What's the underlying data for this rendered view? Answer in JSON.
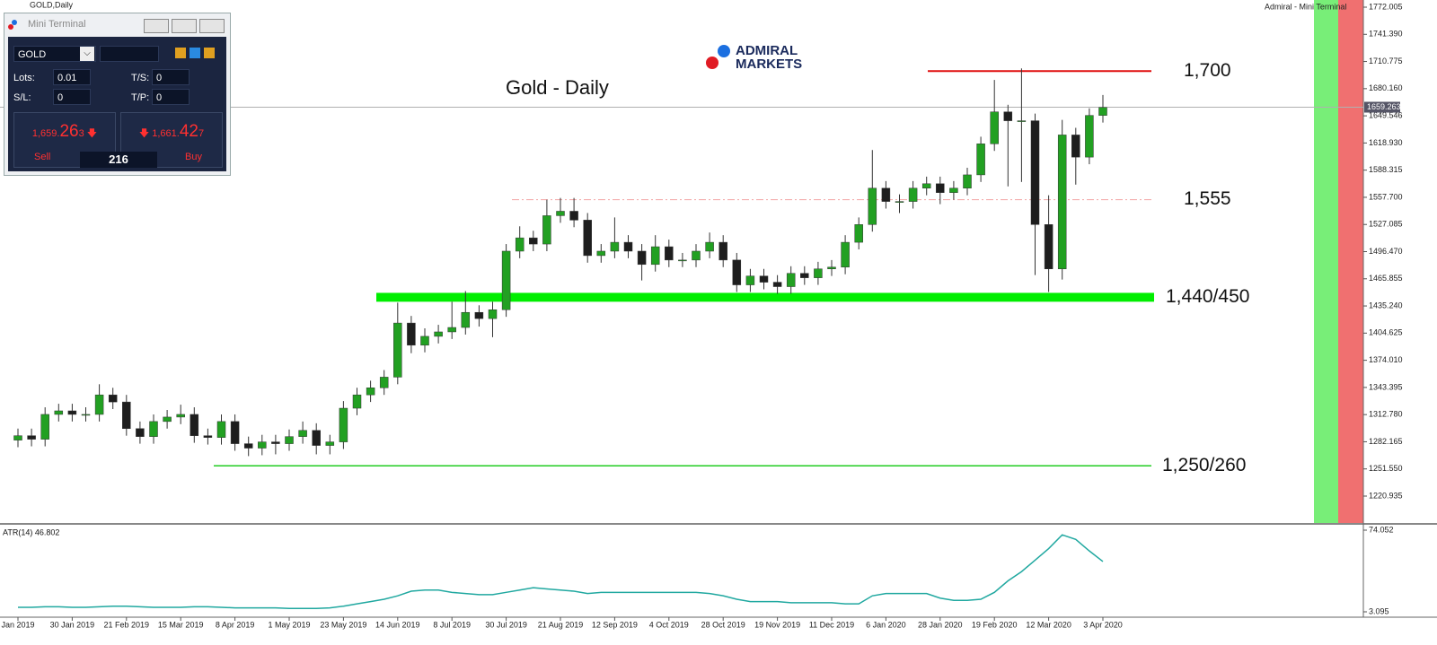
{
  "window": {
    "symbol_title": "GOLD,Daily",
    "app_title": "Admiral - Mini Terminal"
  },
  "terminal": {
    "title": "Mini Terminal",
    "symbol": "GOLD",
    "lots_label": "Lots:",
    "lots": 0.01,
    "ts_label": "T/S:",
    "ts": 0,
    "sl_label": "S/L:",
    "sl": 0,
    "tp_label": "T/P:",
    "tp": 0,
    "sell_price_parts": [
      "1,659.",
      "26",
      "3"
    ],
    "buy_price_parts": [
      "1,661.",
      "42",
      "7"
    ],
    "sell": "Sell",
    "buy": "Buy",
    "spread": 216
  },
  "logo": {
    "line1": "ADMIRAL",
    "line2": "MARKETS"
  },
  "chart_data": [
    {
      "type": "candlestick",
      "title": "Gold - Daily",
      "categories": [
        "Jan 2019",
        null,
        null,
        null,
        "30 Jan 2019",
        null,
        null,
        null,
        "21 Feb 2019",
        null,
        null,
        null,
        "15 Mar 2019",
        null,
        null,
        null,
        "8 Apr 2019",
        null,
        null,
        null,
        "1 May 2019",
        null,
        null,
        null,
        "23 May 2019",
        null,
        null,
        null,
        "14 Jun 2019",
        null,
        null,
        null,
        "8 Jul 2019",
        null,
        null,
        null,
        "30 Jul 2019",
        null,
        null,
        null,
        "21 Aug 2019",
        null,
        null,
        null,
        "12 Sep 2019",
        null,
        null,
        null,
        "4 Oct 2019",
        null,
        null,
        null,
        "28 Oct 2019",
        null,
        null,
        null,
        "19 Nov 2019",
        null,
        null,
        null,
        "11 Dec 2019",
        null,
        null,
        null,
        "6 Jan 2020",
        null,
        null,
        null,
        "28 Jan 2020",
        null,
        null,
        null,
        "19 Feb 2020",
        null,
        null,
        null,
        "12 Mar 2020",
        null,
        null,
        null,
        "3 Apr 2020"
      ],
      "open": [
        1284,
        1289,
        1285,
        1313,
        1317,
        1313,
        1313,
        1335,
        1327,
        1297,
        1288,
        1305,
        1310,
        1313,
        1289,
        1287,
        1305,
        1280,
        1275,
        1282,
        1280,
        1288,
        1295,
        1278,
        1282,
        1320,
        1335,
        1343,
        1355,
        1416,
        1391,
        1401,
        1406,
        1411,
        1428,
        1421,
        1431,
        1497,
        1512,
        1505,
        1537,
        1542,
        1532,
        1492,
        1497,
        1507,
        1497,
        1482,
        1502,
        1487,
        1487,
        1497,
        1507,
        1487,
        1459,
        1469,
        1462,
        1457,
        1472,
        1467,
        1477,
        1479,
        1507,
        1527,
        1568,
        1553,
        1553,
        1568,
        1573,
        1563,
        1568,
        1583,
        1618,
        1654,
        1644,
        1644,
        1527,
        1477,
        1628,
        1603,
        1650
      ],
      "high": [
        1297,
        1297,
        1321,
        1325,
        1325,
        1321,
        1347,
        1343,
        1335,
        1305,
        1313,
        1318,
        1324,
        1321,
        1297,
        1313,
        1313,
        1288,
        1290,
        1290,
        1296,
        1305,
        1303,
        1290,
        1328,
        1343,
        1351,
        1363,
        1439,
        1424,
        1410,
        1414,
        1440,
        1452,
        1436,
        1440,
        1505,
        1525,
        1520,
        1555,
        1557,
        1557,
        1540,
        1505,
        1535,
        1515,
        1505,
        1515,
        1510,
        1495,
        1505,
        1518,
        1515,
        1495,
        1477,
        1477,
        1470,
        1480,
        1480,
        1485,
        1487,
        1515,
        1535,
        1611,
        1576,
        1561,
        1576,
        1581,
        1581,
        1576,
        1591,
        1626,
        1690,
        1662,
        1703,
        1652,
        1560,
        1645,
        1636,
        1658,
        1673
      ],
      "low": [
        1276,
        1277,
        1277,
        1305,
        1305,
        1305,
        1305,
        1319,
        1289,
        1280,
        1280,
        1297,
        1302,
        1281,
        1279,
        1279,
        1272,
        1266,
        1267,
        1268,
        1272,
        1280,
        1268,
        1268,
        1274,
        1312,
        1327,
        1335,
        1347,
        1382,
        1383,
        1393,
        1398,
        1403,
        1412,
        1400,
        1423,
        1489,
        1497,
        1497,
        1529,
        1524,
        1484,
        1484,
        1489,
        1489,
        1464,
        1474,
        1479,
        1479,
        1479,
        1489,
        1479,
        1451,
        1451,
        1454,
        1449,
        1449,
        1459,
        1459,
        1469,
        1471,
        1499,
        1519,
        1545,
        1540,
        1545,
        1560,
        1550,
        1555,
        1560,
        1575,
        1610,
        1570,
        1575,
        1470,
        1451,
        1465,
        1572,
        1595,
        1642
      ],
      "close": [
        1289,
        1285,
        1313,
        1317,
        1313,
        1313,
        1335,
        1327,
        1297,
        1288,
        1305,
        1310,
        1313,
        1289,
        1287,
        1305,
        1280,
        1275,
        1282,
        1280,
        1288,
        1295,
        1278,
        1282,
        1320,
        1335,
        1343,
        1355,
        1416,
        1391,
        1401,
        1406,
        1411,
        1428,
        1421,
        1431,
        1497,
        1512,
        1505,
        1537,
        1542,
        1532,
        1492,
        1497,
        1507,
        1497,
        1482,
        1502,
        1487,
        1487,
        1497,
        1507,
        1487,
        1459,
        1469,
        1462,
        1457,
        1472,
        1467,
        1477,
        1479,
        1507,
        1527,
        1568,
        1553,
        1553,
        1568,
        1573,
        1563,
        1568,
        1583,
        1618,
        1654,
        1644,
        1644,
        1527,
        1477,
        1628,
        1603,
        1650,
        1659
      ],
      "up_color": "#22a022",
      "down_color": "#1e1e1e",
      "ylim": [
        1190.6,
        1772.005
      ],
      "yticks": [
        1772.005,
        {
          "value": 1741.39,
          "label": "1741.390"
        },
        1710.775,
        {
          "value": 1680.16,
          "label": "1680.160"
        },
        1649.546,
        {
          "value": 1618.93,
          "label": "1618.930"
        },
        1588.315,
        {
          "value": 1557.7,
          "label": "1557.700"
        },
        1527.085,
        {
          "value": 1496.47,
          "label": "1496.470"
        },
        1465.855,
        {
          "value": 1435.24,
          "label": "1435.240"
        },
        1404.625,
        {
          "value": 1374.01,
          "label": "1374.010"
        },
        1343.395,
        {
          "value": 1312.78,
          "label": "1312.780"
        },
        1282.165,
        {
          "value": 1251.55,
          "label": "1251.550"
        },
        1220.935
      ],
      "current_price": 1659.263,
      "levels": [
        {
          "label": "1,700",
          "value": 1700,
          "color": "#e01010",
          "style": "line"
        },
        {
          "label": "1,555",
          "value": 1555,
          "color": "#f3a3a3",
          "style": "dashdot"
        },
        {
          "label": "1,440/450",
          "low": 1440,
          "high": 1450,
          "color": "#00ee00",
          "style": "band"
        },
        {
          "label": "1,250/260",
          "low": 1250,
          "high": 1260,
          "color": "#22cc22",
          "style": "line"
        }
      ]
    },
    {
      "type": "line",
      "title": "ATR(14) 46.802",
      "color": "#20a8a0",
      "values": [
        7,
        7,
        7.5,
        7.5,
        7,
        7,
        7.5,
        8,
        8,
        7.5,
        7,
        7,
        7,
        7.5,
        7.5,
        7,
        6.5,
        6.5,
        6.5,
        6.5,
        6,
        6,
        6,
        6.5,
        8,
        10,
        12,
        14,
        17,
        21,
        22,
        22,
        20,
        19,
        18,
        18,
        20,
        22,
        24,
        23,
        22,
        21,
        19,
        20,
        20,
        20,
        20,
        20,
        20,
        20,
        20,
        19,
        17,
        14,
        12,
        12,
        12,
        11,
        11,
        11,
        11,
        10,
        10,
        17,
        19,
        19,
        19,
        19,
        15,
        13,
        13,
        14,
        20,
        30,
        38,
        48,
        58,
        70,
        66,
        56,
        46.802
      ],
      "ylim": [
        3.095,
        74.052
      ],
      "yticks": [
        3.095,
        74.052
      ]
    }
  ]
}
